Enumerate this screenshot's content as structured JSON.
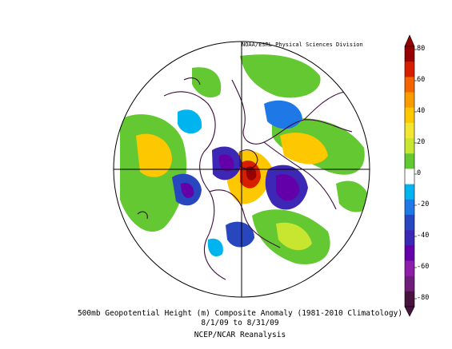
{
  "credit": "NOAA/ESRL Physical Sciences Division",
  "caption": {
    "line1": "500mb Geopotential Height (m) Composite Anomaly (1981-2010 Climatology)",
    "line2": "8/1/09  to 8/31/09",
    "line3": "NCEP/NCAR Reanalysis"
  },
  "colorbar": {
    "labels": [
      "80",
      "60",
      "40",
      "20",
      "0",
      "-20",
      "-40",
      "-60",
      "-80"
    ],
    "colors": [
      "#960000",
      "#d71f00",
      "#f26400",
      "#fa9b00",
      "#fdc800",
      "#f2e630",
      "#c8e630",
      "#64c832",
      "#ffffff",
      "#00b4f0",
      "#1e78e6",
      "#2846be",
      "#3c28b4",
      "#6400aa",
      "#8c1eaa",
      "#6e1e78",
      "#46143c"
    ]
  },
  "map": {
    "projection": "north-polar-stereographic",
    "anomaly_palette": {
      "yellow": "#fdc800",
      "lightgreen": "#c8e630",
      "green": "#64c832",
      "orange": "#fa9b00",
      "red": "#d71f00",
      "darkred": "#960000",
      "cyan": "#00b4f0",
      "blue": "#1e78e6",
      "navy": "#2846be",
      "indigo": "#3c28b4",
      "purple": "#6400aa",
      "violet": "#8c1eaa"
    }
  }
}
